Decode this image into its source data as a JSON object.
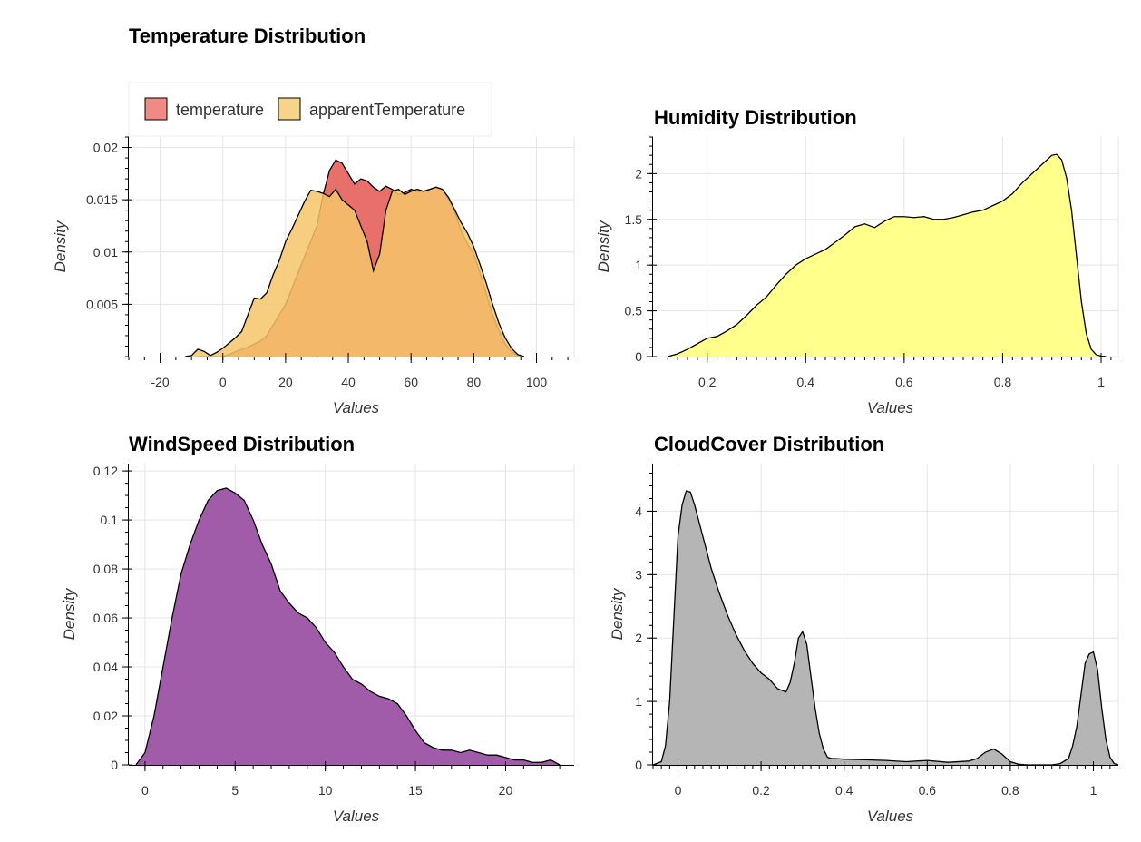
{
  "chart_data": [
    {
      "id": "temperature",
      "type": "area",
      "title": "Temperature Distribution",
      "xlabel": "Values",
      "ylabel": "Density",
      "xlim": [
        -30,
        112
      ],
      "ylim": [
        0,
        0.021
      ],
      "xticks": [
        -20,
        0,
        20,
        40,
        60,
        80,
        100
      ],
      "xtick_labels": [
        "-20",
        "0",
        "20",
        "40",
        "60",
        "80",
        "100"
      ],
      "yticks": [
        0.005,
        0.01,
        0.015,
        0.02
      ],
      "ytick_labels": [
        "0.005",
        "0.01",
        "0.015",
        "0.02"
      ],
      "x_minor_step": 5,
      "y_minor_step": 0.001,
      "grid": true,
      "legend": {
        "placement": "top-left"
      },
      "series": [
        {
          "name": "temperature",
          "color": "#e8706a",
          "x": [
            -8,
            0,
            2,
            6,
            8,
            10,
            12,
            14,
            16,
            18,
            20,
            22,
            25,
            28,
            30,
            32,
            34,
            36,
            38,
            40,
            42,
            44,
            46,
            48,
            50,
            52,
            54,
            56,
            58,
            60,
            62,
            64,
            66,
            68,
            70,
            72,
            74,
            76,
            78,
            80,
            82,
            84,
            86,
            88,
            90,
            92,
            94,
            96
          ],
          "y": [
            0,
            0,
            0.0002,
            0.0007,
            0.0009,
            0.0012,
            0.0015,
            0.002,
            0.003,
            0.004,
            0.005,
            0.0065,
            0.0088,
            0.011,
            0.0125,
            0.0155,
            0.0178,
            0.0188,
            0.0185,
            0.0175,
            0.0165,
            0.017,
            0.0168,
            0.0162,
            0.0158,
            0.0163,
            0.016,
            0.0155,
            0.0157,
            0.016,
            0.0158,
            0.0158,
            0.016,
            0.0162,
            0.016,
            0.015,
            0.0138,
            0.012,
            0.0108,
            0.0098,
            0.008,
            0.006,
            0.004,
            0.0025,
            0.0012,
            0.0005,
            0.0001,
            0
          ]
        },
        {
          "name": "apparentTemperature",
          "color": "#f6c46a",
          "x": [
            -12,
            -10,
            -8,
            -6,
            -4,
            -2,
            0,
            2,
            4,
            6,
            8,
            10,
            12,
            14,
            16,
            18,
            20,
            22,
            24,
            26,
            28,
            30,
            32,
            34,
            36,
            38,
            40,
            42,
            44,
            46,
            48,
            50,
            52,
            54,
            56,
            58,
            60,
            62,
            64,
            66,
            68,
            70,
            72,
            74,
            76,
            78,
            80,
            82,
            84,
            86,
            88,
            90,
            92,
            94,
            96
          ],
          "y": [
            0,
            0.0001,
            0.0007,
            0.0005,
            0.0001,
            0.0004,
            0.0008,
            0.0013,
            0.0018,
            0.0024,
            0.004,
            0.0056,
            0.0055,
            0.0061,
            0.0078,
            0.0092,
            0.011,
            0.0122,
            0.0135,
            0.0148,
            0.0159,
            0.0158,
            0.0156,
            0.0153,
            0.016,
            0.015,
            0.0145,
            0.014,
            0.0125,
            0.011,
            0.0082,
            0.0098,
            0.014,
            0.0158,
            0.016,
            0.0155,
            0.0158,
            0.016,
            0.0158,
            0.016,
            0.0162,
            0.016,
            0.0152,
            0.014,
            0.0128,
            0.0118,
            0.0105,
            0.0088,
            0.007,
            0.005,
            0.0032,
            0.0018,
            0.0008,
            0.0002,
            0
          ]
        }
      ]
    },
    {
      "id": "humidity",
      "type": "area",
      "title": "Humidity Distribution",
      "xlabel": "Values",
      "ylabel": "Density",
      "xlim": [
        0.09,
        1.035
      ],
      "ylim": [
        0,
        2.4
      ],
      "xticks": [
        0.2,
        0.4,
        0.6,
        0.8,
        1
      ],
      "xtick_labels": [
        "0.2",
        "0.4",
        "0.6",
        "0.8",
        "1"
      ],
      "yticks": [
        0,
        0.5,
        1,
        1.5,
        2
      ],
      "ytick_labels": [
        "0",
        "0.5",
        "1",
        "1.5",
        "2"
      ],
      "x_minor_step": 0.02,
      "y_minor_step": 0.1,
      "grid": true,
      "series": [
        {
          "name": "",
          "color": "#ffff8c",
          "x": [
            0.12,
            0.14,
            0.16,
            0.18,
            0.2,
            0.22,
            0.24,
            0.26,
            0.28,
            0.3,
            0.32,
            0.34,
            0.36,
            0.38,
            0.4,
            0.42,
            0.44,
            0.46,
            0.48,
            0.5,
            0.52,
            0.54,
            0.56,
            0.58,
            0.6,
            0.62,
            0.64,
            0.66,
            0.68,
            0.7,
            0.72,
            0.74,
            0.76,
            0.78,
            0.8,
            0.82,
            0.84,
            0.86,
            0.88,
            0.9,
            0.91,
            0.92,
            0.93,
            0.94,
            0.95,
            0.96,
            0.97,
            0.98,
            0.99,
            1.0,
            1.01
          ],
          "y": [
            0,
            0.03,
            0.08,
            0.14,
            0.2,
            0.22,
            0.28,
            0.35,
            0.45,
            0.56,
            0.65,
            0.78,
            0.9,
            1.0,
            1.07,
            1.12,
            1.17,
            1.25,
            1.33,
            1.42,
            1.45,
            1.41,
            1.48,
            1.53,
            1.53,
            1.52,
            1.53,
            1.5,
            1.5,
            1.52,
            1.55,
            1.58,
            1.6,
            1.65,
            1.7,
            1.78,
            1.9,
            2.0,
            2.1,
            2.2,
            2.21,
            2.15,
            1.95,
            1.6,
            1.1,
            0.6,
            0.25,
            0.08,
            0.02,
            0.005,
            0
          ]
        }
      ]
    },
    {
      "id": "windspeed",
      "type": "area",
      "title": "WindSpeed Distribution",
      "xlabel": "Values",
      "ylabel": "Density",
      "xlim": [
        -0.9,
        23.8
      ],
      "ylim": [
        0,
        0.123
      ],
      "xticks": [
        0,
        5,
        10,
        15,
        20
      ],
      "xtick_labels": [
        "0",
        "5",
        "10",
        "15",
        "20"
      ],
      "yticks": [
        0,
        0.02,
        0.04,
        0.06,
        0.08,
        0.1,
        0.12
      ],
      "ytick_labels": [
        "0",
        "0.02",
        "0.04",
        "0.06",
        "0.08",
        "0.1",
        "0.12"
      ],
      "x_minor_step": 1,
      "y_minor_step": 0.005,
      "grid": true,
      "series": [
        {
          "name": "",
          "color": "#a05ca8",
          "x": [
            -0.5,
            0,
            0.5,
            1,
            1.5,
            2,
            2.5,
            3,
            3.5,
            4,
            4.5,
            5,
            5.5,
            6,
            6.5,
            7,
            7.5,
            8,
            8.5,
            9,
            9.5,
            10,
            10.5,
            11,
            11.5,
            12,
            12.5,
            13,
            13.5,
            14,
            14.5,
            15,
            15.5,
            16,
            16.5,
            17,
            17.5,
            18,
            18.5,
            19,
            19.5,
            20,
            20.5,
            21,
            21.5,
            22,
            22.5,
            23
          ],
          "y": [
            0,
            0.005,
            0.02,
            0.04,
            0.06,
            0.078,
            0.09,
            0.1,
            0.108,
            0.112,
            0.113,
            0.111,
            0.108,
            0.1,
            0.09,
            0.082,
            0.071,
            0.066,
            0.062,
            0.06,
            0.056,
            0.05,
            0.046,
            0.04,
            0.035,
            0.033,
            0.03,
            0.028,
            0.027,
            0.025,
            0.02,
            0.014,
            0.009,
            0.007,
            0.006,
            0.006,
            0.005,
            0.006,
            0.005,
            0.004,
            0.004,
            0.003,
            0.002,
            0.002,
            0.001,
            0.001,
            0.002,
            0
          ]
        }
      ]
    },
    {
      "id": "cloudcover",
      "type": "area",
      "title": "CloudCover Distribution",
      "xlabel": "Values",
      "ylabel": "Density",
      "xlim": [
        -0.06,
        1.06
      ],
      "ylim": [
        0,
        4.75
      ],
      "xticks": [
        0,
        0.2,
        0.4,
        0.6,
        0.8,
        1
      ],
      "xtick_labels": [
        "0",
        "0.2",
        "0.4",
        "0.6",
        "0.8",
        "1"
      ],
      "yticks": [
        0,
        1,
        2,
        3,
        4
      ],
      "ytick_labels": [
        "0",
        "1",
        "2",
        "3",
        "4"
      ],
      "x_minor_step": 0.02,
      "y_minor_step": 0.2,
      "grid": true,
      "series": [
        {
          "name": "",
          "color": "#b5b5b5",
          "x": [
            -0.06,
            -0.04,
            -0.03,
            -0.02,
            -0.01,
            0,
            0.01,
            0.02,
            0.03,
            0.04,
            0.06,
            0.08,
            0.1,
            0.12,
            0.14,
            0.16,
            0.18,
            0.2,
            0.22,
            0.24,
            0.26,
            0.27,
            0.28,
            0.29,
            0.3,
            0.31,
            0.32,
            0.33,
            0.34,
            0.35,
            0.36,
            0.37,
            0.38,
            0.4,
            0.45,
            0.5,
            0.55,
            0.6,
            0.65,
            0.7,
            0.72,
            0.74,
            0.76,
            0.78,
            0.8,
            0.82,
            0.84,
            0.9,
            0.92,
            0.94,
            0.95,
            0.96,
            0.97,
            0.98,
            0.99,
            1.0,
            1.01,
            1.02,
            1.03,
            1.04,
            1.05,
            1.06
          ],
          "y": [
            0,
            0.05,
            0.3,
            1.0,
            2.3,
            3.6,
            4.1,
            4.32,
            4.3,
            4.1,
            3.6,
            3.1,
            2.7,
            2.35,
            2.05,
            1.8,
            1.6,
            1.45,
            1.35,
            1.2,
            1.15,
            1.3,
            1.6,
            2.0,
            2.1,
            1.9,
            1.4,
            0.9,
            0.5,
            0.25,
            0.12,
            0.1,
            0.1,
            0.09,
            0.08,
            0.07,
            0.05,
            0.07,
            0.04,
            0.06,
            0.1,
            0.2,
            0.25,
            0.17,
            0.05,
            0.01,
            0,
            0,
            0.02,
            0.1,
            0.3,
            0.6,
            1.1,
            1.6,
            1.75,
            1.78,
            1.5,
            0.9,
            0.4,
            0.12,
            0.02,
            0
          ]
        }
      ]
    }
  ]
}
